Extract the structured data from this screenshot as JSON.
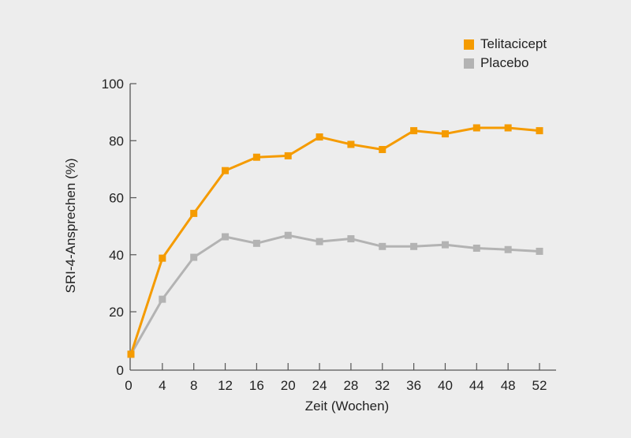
{
  "chart_data": {
    "type": "line",
    "title": "",
    "xlabel": "Zeit (Wochen)",
    "ylabel": "SRI-4-Ansprechen (%)",
    "x": [
      0,
      4,
      8,
      12,
      16,
      20,
      24,
      28,
      32,
      36,
      40,
      44,
      48,
      52
    ],
    "x_ticks": [
      "0",
      "4",
      "8",
      "12",
      "16",
      "20",
      "24",
      "28",
      "32",
      "36",
      "40",
      "44",
      "48",
      "52"
    ],
    "y_ticks": [
      "0",
      "20",
      "40",
      "60",
      "80",
      "100"
    ],
    "ylim": [
      0,
      100
    ],
    "xlim": [
      0,
      52
    ],
    "grid": false,
    "legend_position": "top-right",
    "series": [
      {
        "name": "Telitacicept",
        "color": "#F59B00",
        "marker": "square",
        "values": [
          5.1,
          38.8,
          54.5,
          69.5,
          74.2,
          74.7,
          81.3,
          78.7,
          76.9,
          83.5,
          82.4,
          84.5,
          84.5,
          83.5
        ]
      },
      {
        "name": "Placebo",
        "color": "#B3B3B3",
        "marker": "square",
        "values": [
          5.1,
          24.4,
          39.1,
          46.3,
          44.0,
          46.8,
          44.6,
          45.6,
          42.9,
          42.9,
          43.5,
          42.3,
          41.8,
          41.2
        ]
      }
    ]
  },
  "legend": {
    "items": [
      {
        "label": "Telitacicept",
        "color": "#F59B00"
      },
      {
        "label": "Placebo",
        "color": "#B3B3B3"
      }
    ]
  },
  "colors": {
    "background": "#EDEDED",
    "axis": "#555555",
    "text": "#222222"
  }
}
